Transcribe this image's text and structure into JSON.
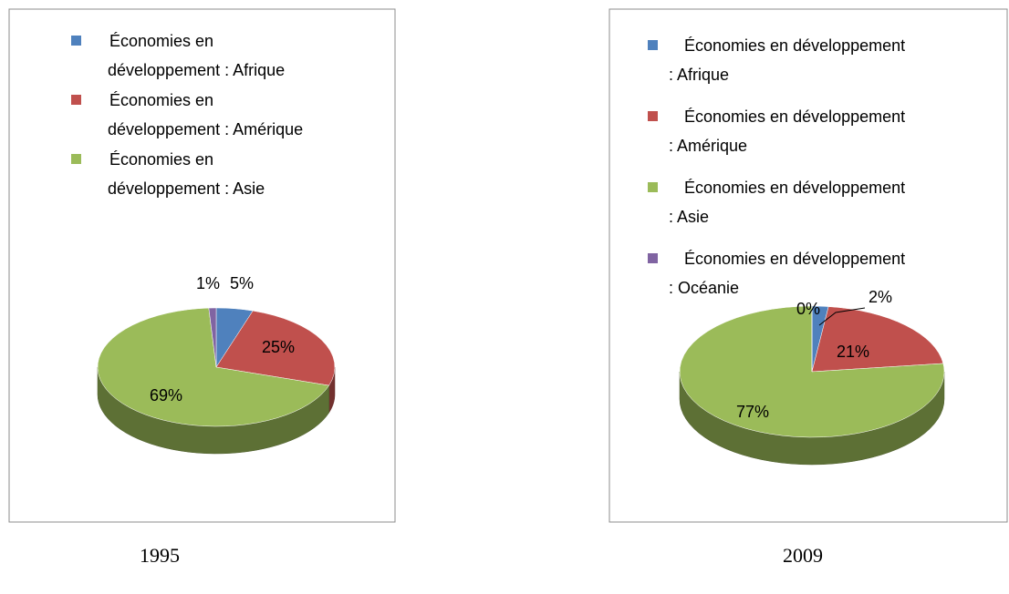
{
  "chart_data": [
    {
      "type": "pie",
      "caption": "1995",
      "categories": [
        "Économies en développement : Afrique",
        "Économies en développement : Amérique",
        "Économies en développement : Asie",
        null
      ],
      "values": [
        5,
        25,
        69,
        1
      ],
      "value_labels": [
        "5%",
        "25%",
        "69%",
        "1%"
      ],
      "colors": [
        "#4f81bd",
        "#c0504d",
        "#9bbb59",
        "#8064a2"
      ]
    },
    {
      "type": "pie",
      "caption": "2009",
      "categories": [
        "Économies en développement : Afrique",
        "Économies en développement : Amérique",
        "Économies en développement : Asie",
        "Économies en développement : Océanie"
      ],
      "values": [
        2,
        21,
        77,
        0
      ],
      "value_labels": [
        "2%",
        "21%",
        "77%",
        "0%"
      ],
      "colors": [
        "#4f81bd",
        "#c0504d",
        "#9bbb59",
        "#8064a2"
      ]
    }
  ]
}
